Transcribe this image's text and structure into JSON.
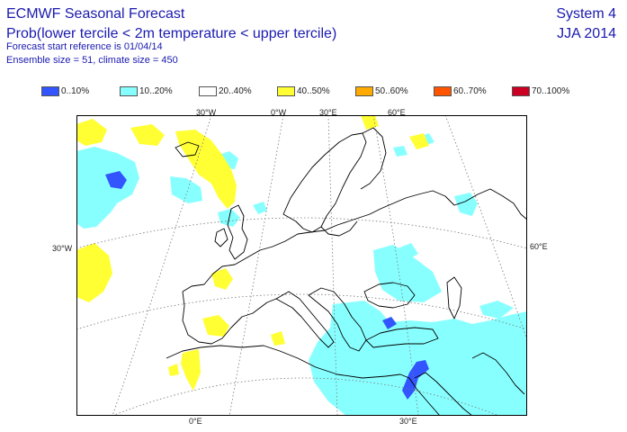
{
  "header": {
    "title": "ECMWF Seasonal Forecast",
    "subtitle": "Prob(lower tercile < 2m temperature < upper tercile)",
    "start_reference": "Forecast start reference is 01/04/14",
    "ensemble": "Ensemble size = 51, climate size = 450",
    "system": "System 4",
    "season": "JJA 2014"
  },
  "legend": [
    {
      "label": "0..10%",
      "color": "#3355ff"
    },
    {
      "label": "10..20%",
      "color": "#88ffff"
    },
    {
      "label": "20..40%",
      "color": "#ffffff"
    },
    {
      "label": "40..50%",
      "color": "#ffff33"
    },
    {
      "label": "50..60%",
      "color": "#ffaa00"
    },
    {
      "label": "60..70%",
      "color": "#ff5500"
    },
    {
      "label": "70..100%",
      "color": "#cc0022"
    }
  ],
  "gridlabels": {
    "top": [
      "30°W",
      "0°W",
      "30°E",
      "60°E"
    ],
    "left": "30°W",
    "right": "60°E",
    "bottom": [
      "0°E",
      "30°E"
    ]
  }
}
